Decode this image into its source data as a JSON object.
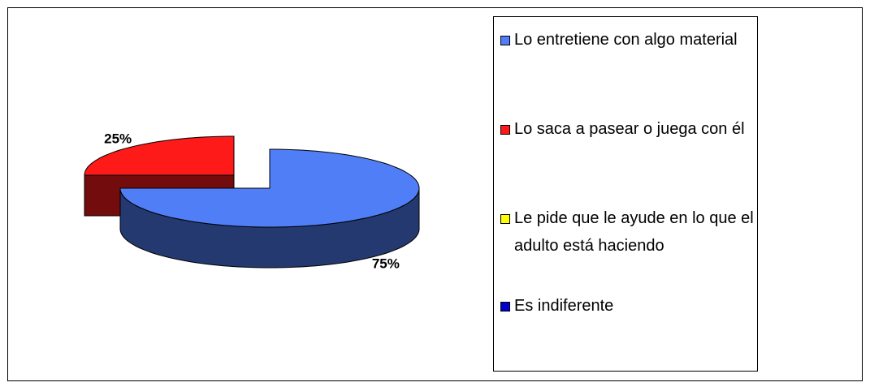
{
  "chart_data": {
    "type": "pie3d",
    "categories": [
      "Lo entretiene con algo material",
      "Lo saca a pasear o juega con él",
      "Le pide que le ayude en lo que el adulto está haciendo",
      "Es indiferente"
    ],
    "values": [
      75,
      25,
      0,
      0
    ],
    "value_labels": [
      "75%",
      "25%",
      null,
      null
    ],
    "colors": [
      "#4f7ef7",
      "#ff1a1a",
      "#ffff00",
      "#0000cc"
    ],
    "legend": "right"
  }
}
